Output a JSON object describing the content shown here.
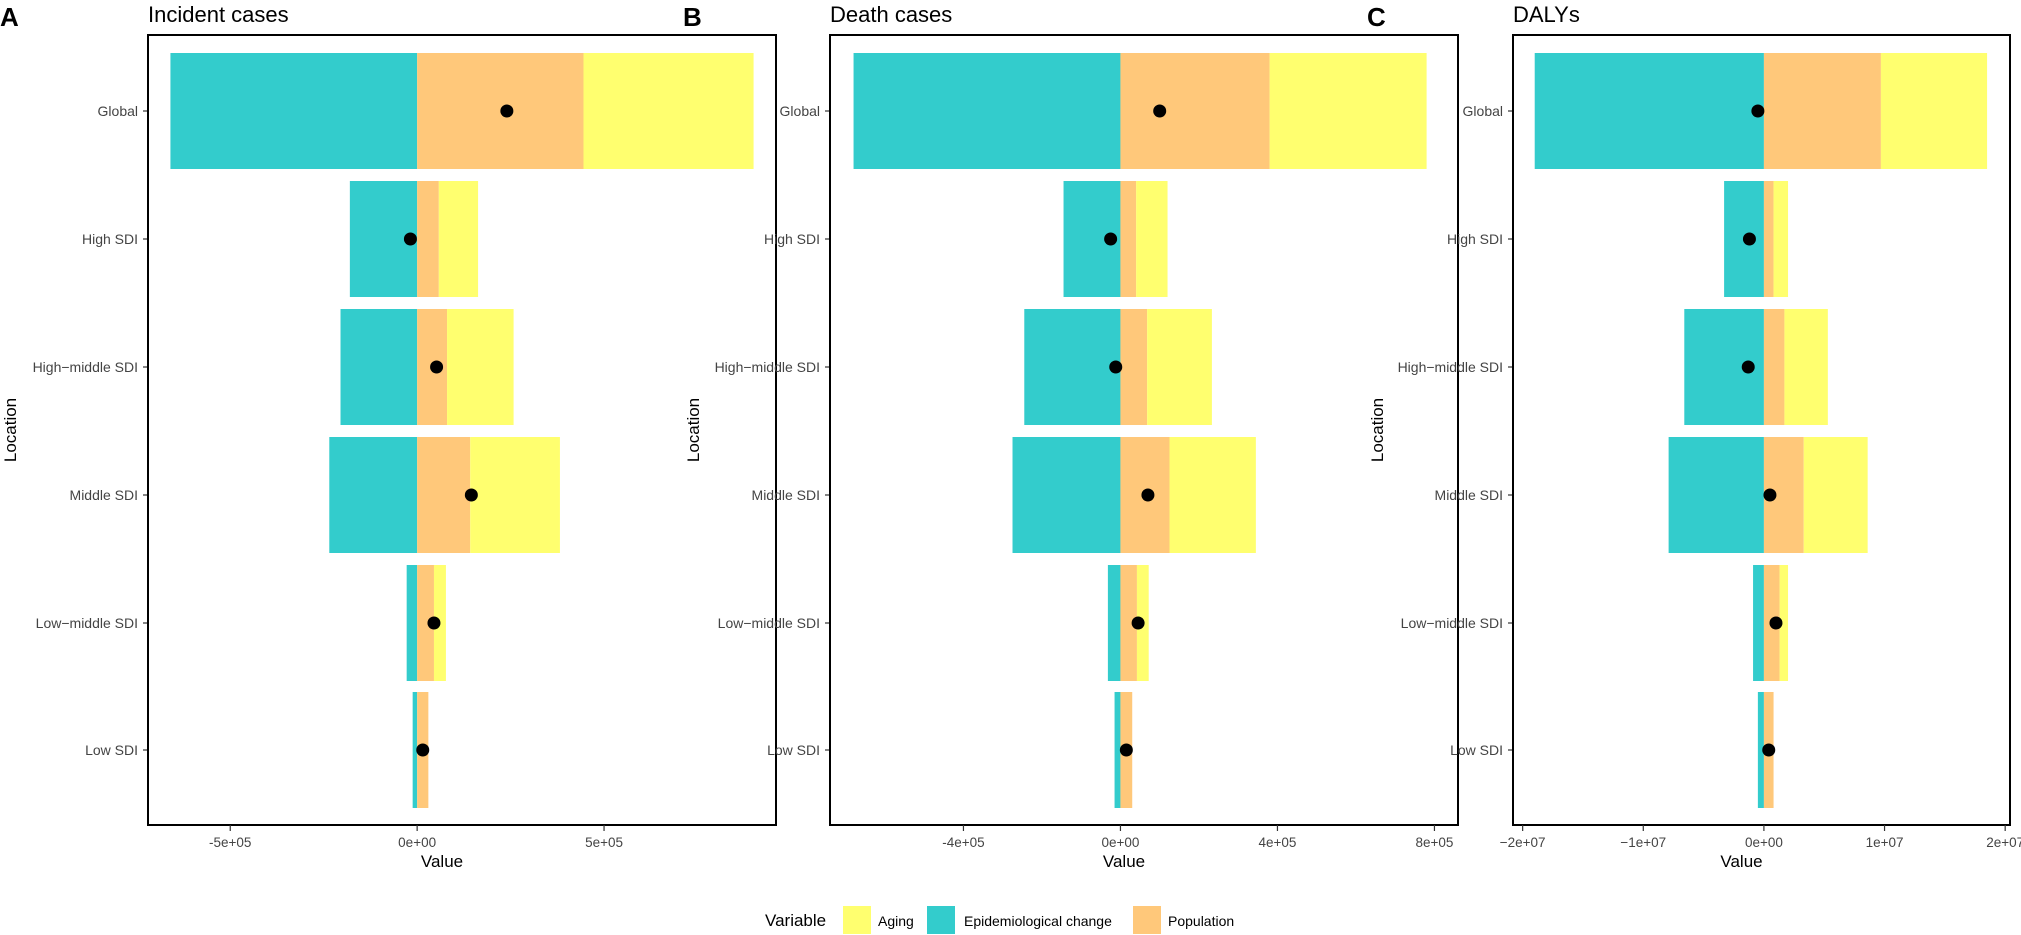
{
  "colors": {
    "Aging": "#ffff6f",
    "Epidemiological change": "#33cccc",
    "Population": "#ffc87a",
    "dot": "#000000",
    "frame": "#000000"
  },
  "legend": {
    "title": "Variable",
    "items": [
      "Aging",
      "Epidemiological change",
      "Population"
    ]
  },
  "chart_data": [
    {
      "type": "bar",
      "stacked": true,
      "orientation": "horizontal",
      "panel": "A",
      "title": "Incident cases",
      "xlabel": "Value",
      "ylabel": "Location",
      "xlim": [
        -720000,
        960000
      ],
      "xticks": [
        {
          "value": -500000,
          "label": "-5e+05"
        },
        {
          "value": 0,
          "label": "0e+00"
        },
        {
          "value": 500000,
          "label": "5e+05"
        }
      ],
      "categories": [
        "Global",
        "High SDI",
        "High−middle SDI",
        "Middle SDI",
        "Low−middle SDI",
        "Low SDI"
      ],
      "series": [
        {
          "name": "Epidemiological change",
          "values": [
            -660000,
            -180000,
            -205000,
            -235000,
            -28000,
            -12000
          ]
        },
        {
          "name": "Population",
          "values": [
            445000,
            58000,
            80000,
            142000,
            45000,
            30000
          ]
        },
        {
          "name": "Aging",
          "values": [
            455000,
            105000,
            178000,
            240000,
            32000,
            0
          ]
        }
      ],
      "total_change": [
        240000,
        -18000,
        52000,
        145000,
        45000,
        15000
      ]
    },
    {
      "type": "bar",
      "stacked": true,
      "orientation": "horizontal",
      "panel": "B",
      "title": "Death cases",
      "xlabel": "Value",
      "ylabel": "Location",
      "xlim": [
        -740000,
        860000
      ],
      "xticks": [
        {
          "value": -400000,
          "label": "-4e+05"
        },
        {
          "value": 0,
          "label": "0e+00"
        },
        {
          "value": 400000,
          "label": "4e+05"
        },
        {
          "value": 800000,
          "label": "8e+05"
        }
      ],
      "categories": [
        "Global",
        "High SDI",
        "High−middle SDI",
        "Middle SDI",
        "Low−middle SDI",
        "Low SDI"
      ],
      "series": [
        {
          "name": "Epidemiological change",
          "values": [
            -680000,
            -145000,
            -245000,
            -275000,
            -32000,
            -15000
          ]
        },
        {
          "name": "Population",
          "values": [
            380000,
            40000,
            68000,
            125000,
            42000,
            30000
          ]
        },
        {
          "name": "Aging",
          "values": [
            400000,
            80000,
            165000,
            220000,
            30000,
            0
          ]
        }
      ],
      "total_change": [
        100000,
        -25000,
        -12000,
        70000,
        45000,
        15000
      ]
    },
    {
      "type": "bar",
      "stacked": true,
      "orientation": "horizontal",
      "panel": "C",
      "title": "DALYs",
      "xlabel": "Value",
      "ylabel": "Location",
      "xlim": [
        -20800000,
        20400000
      ],
      "xticks": [
        {
          "value": -20000000,
          "label": "−2e+07"
        },
        {
          "value": -10000000,
          "label": "−1e+07"
        },
        {
          "value": 0,
          "label": "0e+00"
        },
        {
          "value": 10000000,
          "label": "1e+07"
        },
        {
          "value": 20000000,
          "label": "2e+07"
        }
      ],
      "categories": [
        "Global",
        "High SDI",
        "High−middle SDI",
        "Middle SDI",
        "Low−middle SDI",
        "Low SDI"
      ],
      "series": [
        {
          "name": "Epidemiological change",
          "values": [
            -19000000,
            -3300000,
            -6600000,
            -7900000,
            -900000,
            -500000
          ]
        },
        {
          "name": "Population",
          "values": [
            9700000,
            800000,
            1700000,
            3300000,
            1300000,
            800000
          ]
        },
        {
          "name": "Aging",
          "values": [
            8800000,
            1200000,
            3600000,
            5300000,
            700000,
            0
          ]
        }
      ],
      "total_change": [
        -500000,
        -1200000,
        -1300000,
        500000,
        1000000,
        400000
      ]
    }
  ]
}
